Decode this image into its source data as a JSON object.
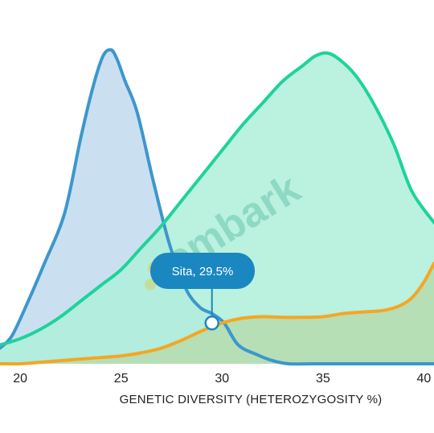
{
  "chart_data": {
    "type": "area",
    "xlabel": "GENETIC DIVERSITY (HETEROZYGOSITY %)",
    "xlim": [
      19,
      40.5
    ],
    "ylim": [
      0,
      1.0
    ],
    "x_ticks": [
      "20",
      "25",
      "30",
      "35",
      "40"
    ],
    "series": [
      {
        "color": "#3c97cc",
        "fill": "#b8d6ec",
        "x": [
          19,
          19.6,
          20.4,
          21.2,
          22.2,
          23.0,
          23.6,
          24.1,
          24.5,
          24.8,
          25.2,
          25.8,
          26.6,
          27.4,
          28.2,
          28.9,
          29.5,
          30.1,
          30.8,
          31.7,
          32.5,
          33.3,
          34.5,
          36,
          38,
          40.5
        ],
        "values": [
          0.05,
          0.09,
          0.2,
          0.32,
          0.48,
          0.72,
          0.88,
          0.98,
          1.0,
          0.97,
          0.9,
          0.8,
          0.58,
          0.38,
          0.24,
          0.18,
          0.16,
          0.13,
          0.06,
          0.03,
          0.01,
          0.0,
          0.0,
          0.0,
          0.0,
          0.0
        ]
      },
      {
        "color": "#1ed39b",
        "fill": "#aeeed9",
        "x": [
          19,
          20,
          21,
          22,
          23,
          24,
          25,
          26,
          27,
          28,
          29,
          30,
          31,
          32,
          33,
          34,
          34.6,
          35.2,
          35.8,
          36.6,
          37.5,
          38.5,
          39.4,
          40.5
        ],
        "values": [
          0.06,
          0.08,
          0.11,
          0.15,
          0.2,
          0.25,
          0.3,
          0.37,
          0.44,
          0.52,
          0.6,
          0.68,
          0.76,
          0.83,
          0.9,
          0.95,
          0.98,
          0.99,
          0.97,
          0.92,
          0.83,
          0.7,
          0.55,
          0.45
        ]
      },
      {
        "color": "#f5a623",
        "fill": "#b6ddb0",
        "x": [
          19,
          20,
          21,
          22,
          23,
          24,
          25,
          26,
          27,
          28,
          29,
          30,
          31,
          32,
          33,
          34,
          35,
          36,
          37,
          38,
          38.8,
          39.4,
          40,
          40.5
        ],
        "values": [
          0.0,
          0.0,
          0.005,
          0.01,
          0.015,
          0.02,
          0.025,
          0.035,
          0.05,
          0.075,
          0.105,
          0.13,
          0.145,
          0.15,
          0.148,
          0.148,
          0.15,
          0.16,
          0.165,
          0.17,
          0.185,
          0.21,
          0.26,
          0.32
        ]
      }
    ],
    "annotation": {
      "label": "Sita, 29.5%",
      "x": 29.5,
      "y": 0.13
    },
    "watermark": {
      "text": "embark"
    },
    "grid": false,
    "legend": "none"
  },
  "colors": {
    "tooltip_bg": "#1a87c0",
    "marker_stroke": "#1a87c0",
    "axis_text": "#222222"
  }
}
